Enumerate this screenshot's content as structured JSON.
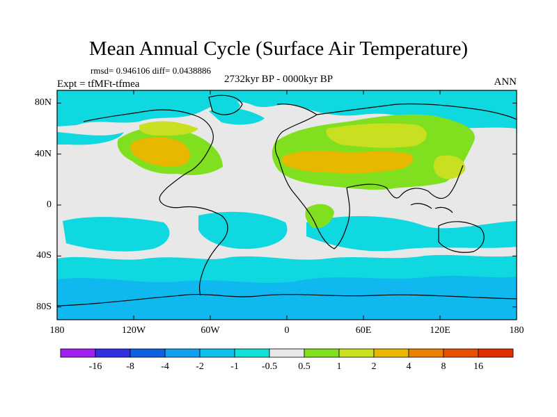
{
  "title": "Mean Annual Cycle (Surface Air Temperature)",
  "stats": "rmsd= 0.946106  diff= 0.0438886",
  "experiment": "Expt = tfMFt-tfmea",
  "period": "2732kyr BP - 0000kyr BP",
  "season": "ANN",
  "map": {
    "lat_range": [
      -90,
      90
    ],
    "lon_range": [
      -180,
      180
    ],
    "y_ticks": [
      {
        "value": 80,
        "label": "80N"
      },
      {
        "value": 40,
        "label": "40N"
      },
      {
        "value": 0,
        "label": "0"
      },
      {
        "value": -40,
        "label": "40S"
      },
      {
        "value": -80,
        "label": "80S"
      }
    ],
    "x_ticks": [
      {
        "value": -180,
        "label": "180"
      },
      {
        "value": -120,
        "label": "120W"
      },
      {
        "value": -60,
        "label": "60W"
      },
      {
        "value": 0,
        "label": "0"
      },
      {
        "value": 60,
        "label": "60E"
      },
      {
        "value": 120,
        "label": "120E"
      },
      {
        "value": 180,
        "label": "180"
      }
    ]
  },
  "colorbar": {
    "levels": [
      "-16",
      "-8",
      "-4",
      "-2",
      "-1",
      "-0.5",
      "0.5",
      "1",
      "2",
      "4",
      "8",
      "16"
    ],
    "colors": [
      "#a020f0",
      "#3030e0",
      "#1060e0",
      "#10a0f0",
      "#10c0e8",
      "#10e0d8",
      "#e8e8e8",
      "#80e020",
      "#c8e020",
      "#e8b800",
      "#e88000",
      "#e85000",
      "#e03000"
    ]
  },
  "palette": {
    "neutral": "#e8e8e8",
    "cool1": "#10d8e0",
    "cool2": "#10b8f0",
    "warm1": "#80e020",
    "warm2": "#c8e020",
    "warm3": "#e8b800"
  }
}
